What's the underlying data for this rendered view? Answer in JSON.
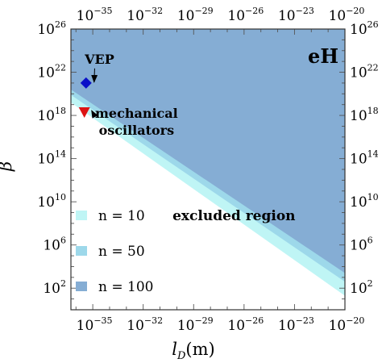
{
  "chart_data": {
    "type": "area",
    "panel_label": "eH",
    "x_scale": "log",
    "y_scale": "log",
    "xlabel": {
      "main": "l",
      "sub": "D",
      "unit": "(m)"
    },
    "ylabel": "β",
    "xlim_exp": [
      -36.3,
      -20
    ],
    "ylim_exp": [
      0,
      26
    ],
    "x_ticks": [
      {
        "base": "10",
        "exp": "−35",
        "e": -35
      },
      {
        "base": "10",
        "exp": "−32",
        "e": -32
      },
      {
        "base": "10",
        "exp": "−29",
        "e": -29
      },
      {
        "base": "10",
        "exp": "−26",
        "e": -26
      },
      {
        "base": "10",
        "exp": "−23",
        "e": -23
      },
      {
        "base": "10",
        "exp": "−20",
        "e": -20
      }
    ],
    "y_ticks": [
      {
        "base": "10",
        "exp": "2",
        "e": 2
      },
      {
        "base": "10",
        "exp": "6",
        "e": 6
      },
      {
        "base": "10",
        "exp": "10",
        "e": 10
      },
      {
        "base": "10",
        "exp": "14",
        "e": 14
      },
      {
        "base": "10",
        "exp": "18",
        "e": 18
      },
      {
        "base": "10",
        "exp": "22",
        "e": 22
      },
      {
        "base": "10",
        "exp": "26",
        "e": 26
      }
    ],
    "series": [
      {
        "name": "n = 10",
        "color": "#bff5f5",
        "boundary": [
          [
            -36.3,
            19.2
          ],
          [
            -20,
            1.3
          ]
        ]
      },
      {
        "name": "n = 50",
        "color": "#9dd8ea",
        "boundary": [
          [
            -36.3,
            19.9
          ],
          [
            -20,
            2.6
          ]
        ]
      },
      {
        "name": "n = 100",
        "color": "#85add4",
        "boundary": [
          [
            -36.3,
            20.4
          ],
          [
            -20,
            3.4
          ]
        ]
      }
    ],
    "points": [
      {
        "label": "VEP",
        "x": -35.4,
        "y": 21.0,
        "shape": "diamond",
        "color": "#0a10c8",
        "text_at": [
          -34.6,
          22.8
        ]
      },
      {
        "label_lines": [
          "mechanical",
          "oscillators"
        ],
        "x": -35.5,
        "y": 18.3,
        "shape": "triangle-down",
        "color": "#dd1414",
        "text_at": [
          -32.4,
          17.8
        ]
      }
    ],
    "annotations": [
      {
        "text": "excluded region",
        "x": -26.6,
        "y": 8.3
      }
    ],
    "legend": {
      "position": "bottom-left"
    }
  }
}
